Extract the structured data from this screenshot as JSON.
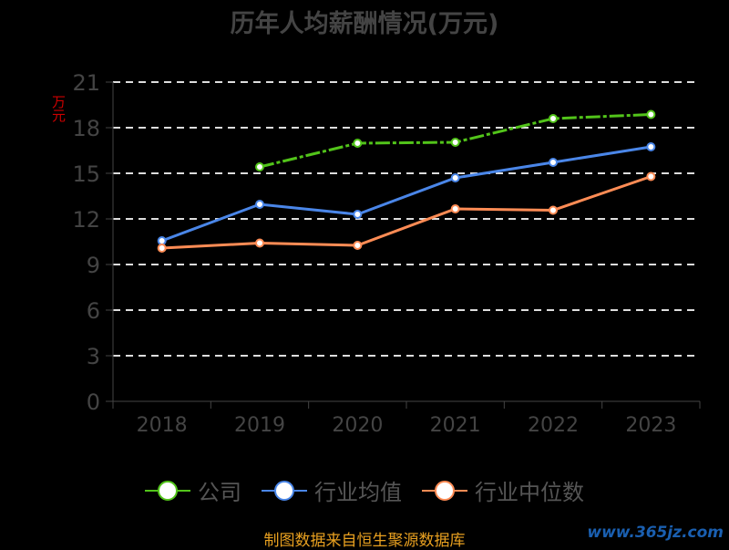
{
  "chart_data": {
    "type": "line",
    "title": "历年人均薪酬情况(万元)",
    "ylabel": "万元",
    "xlabel": "",
    "categories": [
      "2018",
      "2019",
      "2020",
      "2021",
      "2022",
      "2023"
    ],
    "ylim": [
      0,
      21
    ],
    "yticks": [
      "0",
      "3",
      "6",
      "9",
      "12",
      "15",
      "18",
      "21"
    ],
    "grid": true,
    "legend_placement": "bottom",
    "series": [
      {
        "name": "公司",
        "color": "#52c41a",
        "dashed": true,
        "values": [
          null,
          15.42,
          16.98,
          17.04,
          18.6,
          18.87
        ]
      },
      {
        "name": "行业均值",
        "color": "#4a86e8",
        "dashed": false,
        "values": [
          10.56,
          12.96,
          12.3,
          14.7,
          15.72,
          16.74
        ]
      },
      {
        "name": "行业中位数",
        "color": "#ff8c55",
        "dashed": false,
        "values": [
          10.08,
          10.41,
          10.26,
          12.66,
          12.57,
          14.79
        ]
      }
    ]
  },
  "footer": "制图数据来自恒生聚源数据库",
  "watermark": "www.365jz.com"
}
